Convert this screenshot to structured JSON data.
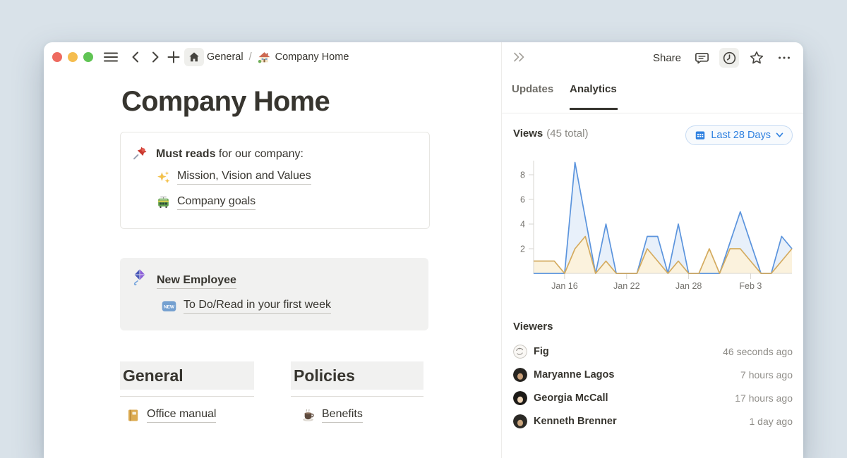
{
  "window": {
    "breadcrumb": {
      "root": "General",
      "separator": "/",
      "page": "Company Home",
      "root_icon": "home-mono-icon",
      "page_icon": "house-emoji-icon"
    },
    "traffic_lights": {
      "close": "#ee6a5f",
      "minimize": "#f5bd4f",
      "zoom": "#60c454"
    }
  },
  "page": {
    "title": "Company Home",
    "must_reads": {
      "icon": "pushpin-icon",
      "lead_bold": "Must reads",
      "lead_rest": " for our company:",
      "links": [
        {
          "icon": "sparkles-icon",
          "label": "Mission, Vision and Values"
        },
        {
          "icon": "tram-icon",
          "label": "Company goals"
        }
      ]
    },
    "new_employee": {
      "icon": "kite-icon",
      "title": "New Employee",
      "link": {
        "icon": "new-badge-icon",
        "label": "To Do/Read in your first week"
      }
    },
    "columns": [
      {
        "heading": "General",
        "links": [
          {
            "icon": "notebook-icon",
            "label": "Office manual"
          }
        ]
      },
      {
        "heading": "Policies",
        "links": [
          {
            "icon": "coffee-icon",
            "label": "Benefits"
          }
        ]
      }
    ]
  },
  "panel": {
    "collapse_icon": "double-chevron-right-icon",
    "share_label": "Share",
    "action_icons": [
      "comment-icon",
      "clock-icon",
      "star-icon",
      "more-icon"
    ],
    "tabs": [
      {
        "label": "Updates",
        "active": false
      },
      {
        "label": "Analytics",
        "active": true
      }
    ],
    "views": {
      "label": "Views",
      "total": "(45 total)",
      "range_icon": "calendar-icon",
      "range": "Last 28 Days"
    },
    "viewers": {
      "label": "Viewers",
      "rows": [
        {
          "name": "Fig",
          "time": "46 seconds ago",
          "avatar_kind": "sketch",
          "avatar_bg": "#faf8f5",
          "avatar_fg": "#8d8a84"
        },
        {
          "name": "Maryanne Lagos",
          "time": "7 hours ago",
          "avatar_kind": "dark",
          "avatar_bg": "#262420",
          "avatar_fg": "#c99f79"
        },
        {
          "name": "Georgia McCall",
          "time": "17 hours ago",
          "avatar_kind": "dark",
          "avatar_bg": "#1c1a17",
          "avatar_fg": "#ecd3b6"
        },
        {
          "name": "Kenneth Brenner",
          "time": "1 day ago",
          "avatar_kind": "dark",
          "avatar_bg": "#2b2925",
          "avatar_fg": "#caa57e"
        }
      ]
    }
  },
  "chart_data": {
    "type": "area",
    "num_points": 26,
    "x_tick_positions": [
      3,
      9,
      15,
      21
    ],
    "x_tick_labels": [
      "Jan 16",
      "Jan 22",
      "Jan 28",
      "Feb 3"
    ],
    "y_ticks": [
      2,
      4,
      6,
      8
    ],
    "ylim": [
      0,
      9.3
    ],
    "grid": false,
    "legend": false,
    "series": [
      {
        "name": "series-blue",
        "color": "#5b94dd",
        "fill": "#e8f0fa",
        "values": [
          0,
          0,
          0,
          0,
          9,
          4.5,
          0,
          4,
          0,
          0,
          0,
          3,
          3,
          0,
          4,
          0,
          0,
          0,
          0,
          2.5,
          5,
          2.5,
          0,
          0,
          3,
          2
        ]
      },
      {
        "name": "series-yellow",
        "color": "#d4ab5f",
        "fill": "#fbf2dd",
        "values": [
          1,
          1,
          1,
          0,
          2,
          3,
          0,
          1,
          0,
          0,
          0,
          2,
          1,
          0,
          1,
          0,
          0,
          2,
          0,
          2,
          2,
          1,
          0,
          0,
          1,
          2
        ]
      }
    ]
  }
}
